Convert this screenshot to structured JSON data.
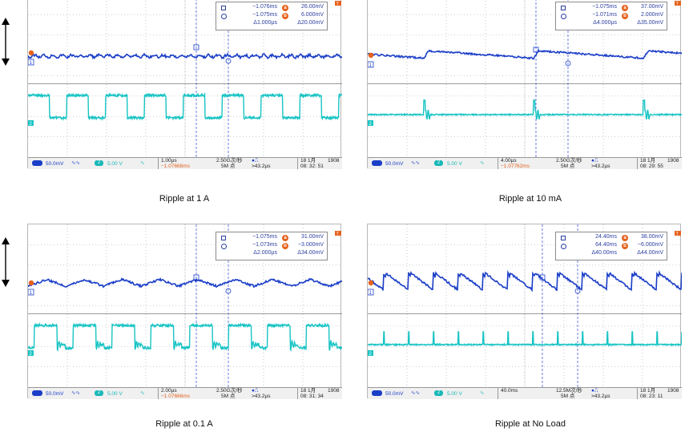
{
  "panels": [
    {
      "caption": "Ripple at 1 A",
      "cursor1_time": "−1.076ms",
      "cursor_a_volt": "26.00mV",
      "cursor2_time": "−1.075ms",
      "cursor_b_volt": "6.000mV",
      "delta_time": "Δ1.000µs",
      "delta_volt": "Δ20.00mV",
      "ch1_scale": "50.0mV",
      "ch2_label": "2",
      "ch2_scale": "5.00 V",
      "timebase": "1.00µs",
      "trigger_pos": "−1.07668ms",
      "sample_rate": "2.50G次/秒",
      "record_length": "5M 点",
      "trigger_freq": ">43.2µs",
      "date": "18 1月",
      "year": "1908",
      "time": "08: 32: 51"
    },
    {
      "caption": "Ripple at 10 mA",
      "cursor1_time": "−1.075ms",
      "cursor_a_volt": "37.00mV",
      "cursor2_time": "−1.071ms",
      "cursor_b_volt": "2.000mV",
      "delta_time": "Δ4.000µs",
      "delta_volt": "Δ35.00mV",
      "ch1_scale": "50.0mV",
      "ch2_label": "2",
      "ch2_scale": "5.00 V",
      "timebase": "4.00µs",
      "trigger_pos": "−1.07762ms",
      "sample_rate": "2.50G次/秒",
      "record_length": "5M 点",
      "trigger_freq": ">43.2µs",
      "date": "18 1月",
      "year": "1908",
      "time": "08: 29: 55"
    },
    {
      "caption": "Ripple at 0.1 A",
      "cursor1_time": "−1.075ms",
      "cursor_a_volt": "31.00mV",
      "cursor2_time": "−1.073ms",
      "cursor_b_volt": "−3.000mV",
      "delta_time": "Δ2.000µs",
      "delta_volt": "Δ34.00mV",
      "ch1_scale": "50.0mV",
      "ch2_label": "2",
      "ch2_scale": "5.00 V",
      "timebase": "2.00µs",
      "trigger_pos": "−1.07666ms",
      "sample_rate": "2.50G次/秒",
      "record_length": "5M 点",
      "trigger_freq": ">43.2µs",
      "date": "18 1月",
      "year": "1908",
      "time": "08: 31: 34"
    },
    {
      "caption": "Ripple at No Load",
      "cursor1_time": "24.40ms",
      "cursor_a_volt": "38.00mV",
      "cursor2_time": "64.40ms",
      "cursor_b_volt": "−6.000mV",
      "delta_time": "Δ40.00ms",
      "delta_volt": "Δ44.00mV",
      "ch1_scale": "50.0mV",
      "ch2_label": "2",
      "ch2_scale": "5.00 V",
      "timebase": "40.0ms",
      "trigger_pos": "",
      "sample_rate": "12.5M次/秒",
      "record_length": "5M 点",
      "trigger_freq": ">43.2µs",
      "date": "18 1月",
      "year": "1908",
      "time": "08: 23: 11"
    }
  ],
  "labels": {
    "ch1_marker": "1",
    "ch2_marker": "2",
    "cursor_a": "a",
    "cursor_b": "b",
    "trigger_marker": "T"
  },
  "colors": {
    "ch1": "#1b3ec8",
    "ch2": "#18c4c4",
    "grid": "#9aa4b0",
    "cursor": "#4a5bd8",
    "accent": "#e5621c"
  },
  "icons": [
    "vertical-double-arrow-icon",
    "square-cursor-icon",
    "circle-cursor-icon",
    "trigger-edge-icon"
  ]
}
